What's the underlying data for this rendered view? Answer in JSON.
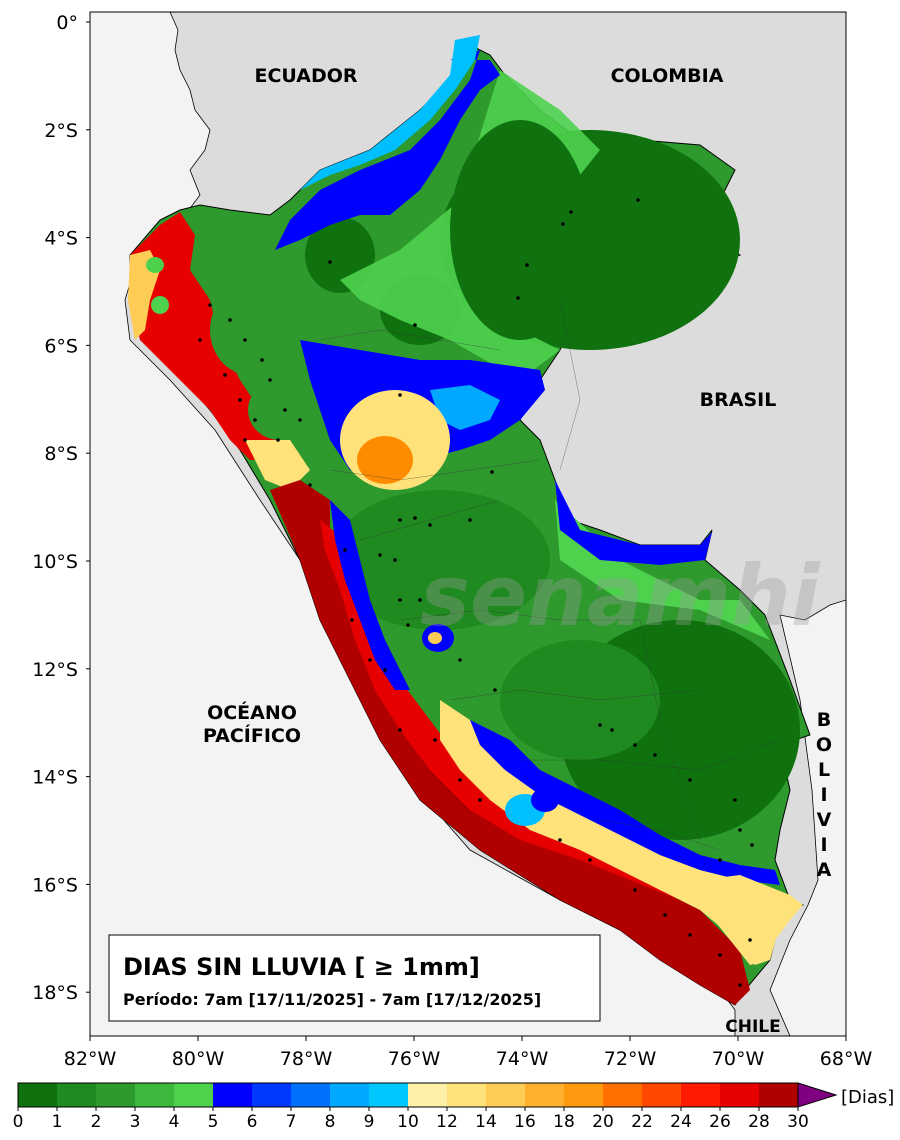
{
  "map": {
    "country_labels": {
      "ecuador": "ECUADOR",
      "colombia": "COLOMBIA",
      "brasil": "BRASIL",
      "bolivia": "BOLIVIA",
      "chile": "CHILE",
      "ocean_line1": "OCÉANO",
      "ocean_line2": "PACÍFICO"
    },
    "lat_ticks": [
      "0°",
      "2°S",
      "4°S",
      "6°S",
      "8°S",
      "10°S",
      "12°S",
      "14°S",
      "16°S",
      "18°S"
    ],
    "lon_ticks": [
      "82°W",
      "80°W",
      "78°W",
      "76°W",
      "74°W",
      "72°W",
      "70°W",
      "68°W"
    ],
    "watermark": "senamhi",
    "colors": {
      "land_foreign": "#dcdcdc",
      "ocean": "#f3f3f3",
      "green_dark": "#0f720f",
      "green_mid": "#2e9a2e",
      "green_light": "#4ed24e",
      "blue_dark": "#0000ff",
      "blue_light": "#00bfff",
      "yellow": "#ffe27a",
      "orange": "#ff8c00",
      "red": "#e60000",
      "dark_red": "#b00000"
    }
  },
  "title_box": {
    "title": "DIAS SIN LLUVIA [ ≥ 1mm]",
    "period": "Período: 7am [17/11/2025] - 7am [17/12/2025]"
  },
  "colorbar": {
    "unit": "[Dias]",
    "ticks": [
      "0",
      "1",
      "2",
      "3",
      "4",
      "5",
      "6",
      "7",
      "8",
      "9",
      "10",
      "12",
      "14",
      "16",
      "18",
      "20",
      "22",
      "24",
      "26",
      "28",
      "30"
    ],
    "colors": [
      "#0f720f",
      "#1f8a1f",
      "#2e9a2e",
      "#3cb83c",
      "#4ed24e",
      "#0000ff",
      "#0038ff",
      "#0070ff",
      "#00a8ff",
      "#00c8ff",
      "#fff0a8",
      "#ffe27a",
      "#ffcc55",
      "#ffb02e",
      "#ff9a10",
      "#ff7000",
      "#ff4800",
      "#ff1a00",
      "#e60000",
      "#b00000"
    ],
    "extend_color": "#800080"
  }
}
